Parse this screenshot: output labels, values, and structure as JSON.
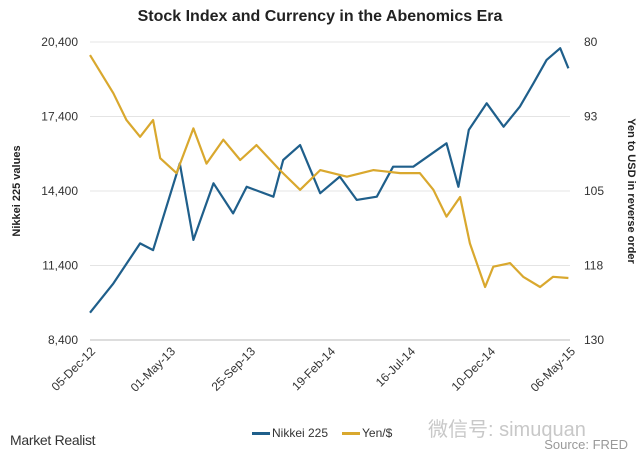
{
  "chart_data": {
    "type": "line",
    "title": "Stock Index and Currency in the Abenomics Era",
    "xlabel": "",
    "ylabel": "Nikkei 225 values",
    "y2label": "Yen to USD in reverse order",
    "x_unit": "days since 05-Dec-12",
    "xlim": [
      0,
      882
    ],
    "x_ticks": [
      0,
      147,
      294,
      441,
      588,
      735,
      882
    ],
    "x_tick_labels": [
      "05-Dec-12",
      "01-May-13",
      "25-Sep-13",
      "19-Feb-14",
      "16-Jul-14",
      "10-Dec-14",
      "06-May-15"
    ],
    "ylim": [
      8400,
      20400
    ],
    "y_ticks": [
      "20,400",
      "17,400",
      "14,400",
      "11,400",
      "8,400"
    ],
    "y_tick_values": [
      20400,
      17400,
      14400,
      11400,
      8400
    ],
    "y2lim": [
      80,
      130
    ],
    "y2_reversed": true,
    "y2_ticks": [
      "80",
      "93",
      "105",
      "118",
      "130"
    ],
    "grid": true,
    "legend_position": "bottom",
    "series": [
      {
        "name": "Nikkei 225",
        "axis": "left",
        "color": "#1f5f8b",
        "x": [
          0,
          43,
          92,
          116,
          165,
          190,
          227,
          263,
          288,
          337,
          355,
          386,
          423,
          459,
          490,
          527,
          557,
          594,
          655,
          677,
          696,
          729,
          760,
          790,
          815,
          839,
          864,
          879
        ],
        "values": [
          9500,
          10680,
          12290,
          12020,
          15510,
          12430,
          14710,
          13500,
          14570,
          14170,
          15650,
          16250,
          14310,
          14980,
          14040,
          14170,
          15380,
          15380,
          16320,
          14570,
          16860,
          17930,
          16990,
          17800,
          18740,
          19680,
          20150,
          19340
        ]
      },
      {
        "name": "Yen/$",
        "axis": "right",
        "color": "#d9a82e",
        "x": [
          0,
          43,
          67,
          92,
          116,
          129,
          159,
          190,
          214,
          245,
          276,
          306,
          349,
          386,
          423,
          472,
          521,
          570,
          606,
          631,
          655,
          680,
          698,
          726,
          741,
          772,
          796,
          827,
          851,
          879
        ],
        "values": [
          82.2,
          88.6,
          93.1,
          95.9,
          93.1,
          99.5,
          102.0,
          94.5,
          100.4,
          96.4,
          99.8,
          97.3,
          101.5,
          104.8,
          101.5,
          102.6,
          101.5,
          102.0,
          102.0,
          104.8,
          109.3,
          106.0,
          113.8,
          121.1,
          117.7,
          117.1,
          119.4,
          121.1,
          119.4,
          119.6
        ]
      }
    ]
  },
  "footer": {
    "logo": "Market Realist",
    "watermark": "微信号: simuquan",
    "source": "Source: FRED"
  }
}
